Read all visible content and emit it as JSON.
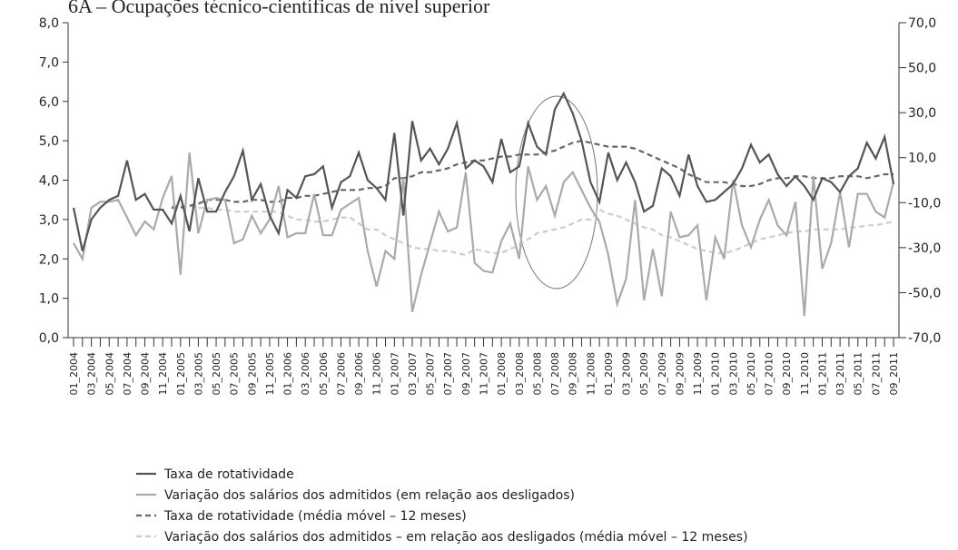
{
  "chart_data": {
    "type": "line",
    "title": "6A – Ocupações técnico-científicas de nível superior",
    "categories": [
      "01_2004",
      null,
      "03_2004",
      null,
      "05_2004",
      null,
      "07_2004",
      null,
      "09_2004",
      null,
      "11_2004",
      null,
      "01_2005",
      null,
      "03_2005",
      null,
      "05_2005",
      null,
      "07_2005",
      null,
      "09_2005",
      null,
      "11_2005",
      null,
      "01_2006",
      null,
      "03_2006",
      null,
      "05_2006",
      null,
      "07_2006",
      null,
      "09_2006",
      null,
      "11_2006",
      null,
      "01_2007",
      null,
      "03_2007",
      null,
      "05_2007",
      null,
      "07_2007",
      null,
      "09_2007",
      null,
      "11_2007",
      null,
      "01_2008",
      null,
      "03_2008",
      null,
      "05_2008",
      null,
      "07_2008",
      null,
      "09_2008",
      null,
      "11_2008",
      null,
      "01_2009",
      null,
      "03_2009",
      null,
      "05_2009",
      null,
      "07_2009",
      null,
      "09_2009",
      null,
      "11_2009",
      null,
      "01_2010",
      null,
      "03_2010",
      null,
      "05_2010",
      null,
      "07_2010",
      null,
      "09_2010",
      null,
      "11_2010",
      null,
      "01_2011",
      null,
      "03_2011",
      null,
      "05_2011",
      null,
      "07_2011",
      null,
      "09_2011"
    ],
    "series": [
      {
        "name": "Taxa de rotatividade",
        "color": "#555555",
        "dashed": false,
        "values": [
          3.3,
          2.2,
          3.0,
          3.3,
          3.5,
          3.6,
          4.5,
          3.5,
          3.65,
          3.25,
          3.25,
          2.9,
          3.6,
          2.7,
          4.05,
          3.2,
          3.2,
          3.7,
          4.1,
          4.75,
          3.5,
          3.9,
          3.1,
          2.65,
          3.75,
          3.55,
          4.1,
          4.15,
          4.35,
          3.3,
          3.95,
          4.1,
          4.7,
          4.0,
          3.8,
          3.5,
          5.2,
          3.1,
          5.5,
          4.5,
          4.8,
          4.4,
          4.8,
          5.45,
          4.3,
          4.5,
          4.35,
          3.95,
          5.05,
          4.2,
          4.35,
          5.45,
          4.85,
          4.65,
          5.8,
          6.2,
          5.7,
          5.0,
          3.95,
          3.45,
          4.7,
          4.0,
          4.45,
          3.95,
          3.2,
          3.35,
          4.3,
          4.1,
          3.6,
          4.65,
          3.85,
          3.45,
          3.5,
          3.7,
          3.9,
          4.3,
          4.9,
          4.45,
          4.65,
          4.15,
          3.85,
          4.1,
          3.85,
          3.5,
          4.05,
          3.95,
          3.7,
          4.1,
          4.3,
          4.95,
          4.55,
          5.1,
          3.9
        ]
      },
      {
        "name": "Variação dos salários dos admitidos (em relação aos desligados)",
        "color": "#aaaaaa",
        "dashed": false,
        "axis": "y2",
        "values": [
          -28,
          -35,
          -12.3,
          -9.6,
          -9.6,
          -8.8,
          -16.6,
          -24.5,
          -18.4,
          -21.9,
          -7.9,
          1.8,
          -42,
          12.3,
          -23.6,
          -8.8,
          -7.9,
          -8.8,
          -28,
          -26.3,
          -15.8,
          -23.6,
          -17.5,
          -2.6,
          -25.4,
          -23.6,
          -23.6,
          -6.1,
          -24.5,
          -24.5,
          -13.1,
          -10.5,
          -7.9,
          -31.5,
          -47.3,
          -31.5,
          -35,
          0.9,
          -58.6,
          -42,
          -28,
          -14,
          -22.8,
          -21,
          3.5,
          -36.8,
          -40.3,
          -41.1,
          -27.1,
          -19.3,
          -35,
          6.1,
          -8.8,
          -2.6,
          -15.8,
          -0.9,
          3.5,
          -4.4,
          -12.3,
          -18.4,
          -33.3,
          -55.1,
          -43.8,
          -8.8,
          -53.4,
          -30.6,
          -51.6,
          -14,
          -25.4,
          -24.5,
          -20.1,
          -53.4,
          -25.4,
          -35,
          0,
          -20.1,
          -29.8,
          -17.5,
          -8.8,
          -20.1,
          -24.5,
          -9.6,
          -60.4,
          1.8,
          -39.4,
          -28,
          -5.3,
          -29.8,
          -6.1,
          -6.1,
          -14,
          -16.6,
          -0.9
        ]
      },
      {
        "name": "Taxa de rotatividade (média móvel – 12 meses)",
        "color": "#666666",
        "dashed": true,
        "values": [
          null,
          null,
          null,
          null,
          null,
          null,
          null,
          null,
          null,
          null,
          null,
          3.3,
          3.3,
          3.35,
          3.4,
          3.5,
          3.5,
          3.5,
          3.45,
          3.45,
          3.5,
          3.5,
          3.45,
          3.45,
          3.55,
          3.55,
          3.6,
          3.6,
          3.65,
          3.7,
          3.75,
          3.75,
          3.75,
          3.8,
          3.8,
          3.85,
          4.05,
          4.05,
          4.1,
          4.2,
          4.2,
          4.25,
          4.3,
          4.4,
          4.45,
          4.5,
          4.5,
          4.55,
          4.6,
          4.6,
          4.65,
          4.65,
          4.65,
          4.7,
          4.75,
          4.85,
          4.95,
          5.0,
          4.95,
          4.9,
          4.85,
          4.85,
          4.85,
          4.8,
          4.7,
          4.6,
          4.5,
          4.4,
          4.3,
          4.15,
          4.05,
          3.95,
          3.95,
          3.95,
          3.9,
          3.85,
          3.85,
          3.9,
          4.0,
          4.05,
          4.05,
          4.1,
          4.1,
          4.05,
          4.05,
          4.05,
          4.1,
          4.1,
          4.1,
          4.05,
          4.1,
          4.15,
          4.15
        ]
      },
      {
        "name": "Variação dos salários dos admitidos – em relação aos desligados (média móvel – 12 meses)",
        "color": "#cccccc",
        "dashed": true,
        "axis": "y2",
        "values": [
          null,
          null,
          null,
          null,
          null,
          null,
          null,
          null,
          null,
          null,
          null,
          -11.4,
          -11.4,
          -11.4,
          -12.3,
          -12.3,
          -13.1,
          -13.1,
          -14,
          -14,
          -14,
          -14,
          -14,
          -14,
          -15.8,
          -17.5,
          -17.5,
          -18.4,
          -18.4,
          -17.5,
          -16.6,
          -16.6,
          -19.3,
          -21.9,
          -21.9,
          -24.5,
          -26.3,
          -28,
          -29.8,
          -30.6,
          -30.6,
          -31.5,
          -31.5,
          -32.4,
          -33.3,
          -30.6,
          -31.5,
          -32.4,
          -32.4,
          -30.6,
          -28.9,
          -26.3,
          -23.6,
          -22.8,
          -21.9,
          -21,
          -19.3,
          -17.5,
          -17.5,
          -13.1,
          -14.9,
          -15.8,
          -17.5,
          -19.3,
          -21,
          -21.9,
          -24.5,
          -25.4,
          -27.1,
          -28.9,
          -30.6,
          -31.5,
          -32.4,
          -32.4,
          -31.5,
          -29.8,
          -28,
          -26.3,
          -25.4,
          -24.5,
          -23.6,
          -22.8,
          -22.8,
          -21.9,
          -21.9,
          -21.9,
          -21.9,
          -21,
          -21,
          -20.1,
          -20.1,
          -19.3,
          -18.4
        ]
      }
    ],
    "ylim": [
      0,
      8
    ],
    "yticks": [
      {
        "value": 0,
        "label": "0,0"
      },
      {
        "value": 1,
        "label": "1,0"
      },
      {
        "value": 2,
        "label": "2,0"
      },
      {
        "value": 3,
        "label": "3,0"
      },
      {
        "value": 4,
        "label": "4,0"
      },
      {
        "value": 5,
        "label": "5,0"
      },
      {
        "value": 6,
        "label": "6,0"
      },
      {
        "value": 7,
        "label": "7,0"
      },
      {
        "value": 8,
        "label": "8,0"
      }
    ],
    "y2lim": [
      -70,
      70
    ],
    "y2ticks": [
      {
        "value": -70,
        "label": "-70,0"
      },
      {
        "value": -50,
        "label": "-50,0"
      },
      {
        "value": -30,
        "label": "-30,0"
      },
      {
        "value": -10,
        "label": "-10,0"
      },
      {
        "value": 10,
        "label": "10,0"
      },
      {
        "value": 30,
        "label": "30,0"
      },
      {
        "value": 50,
        "label": "50,0"
      },
      {
        "value": 70,
        "label": "70,0"
      }
    ],
    "grid": false
  }
}
